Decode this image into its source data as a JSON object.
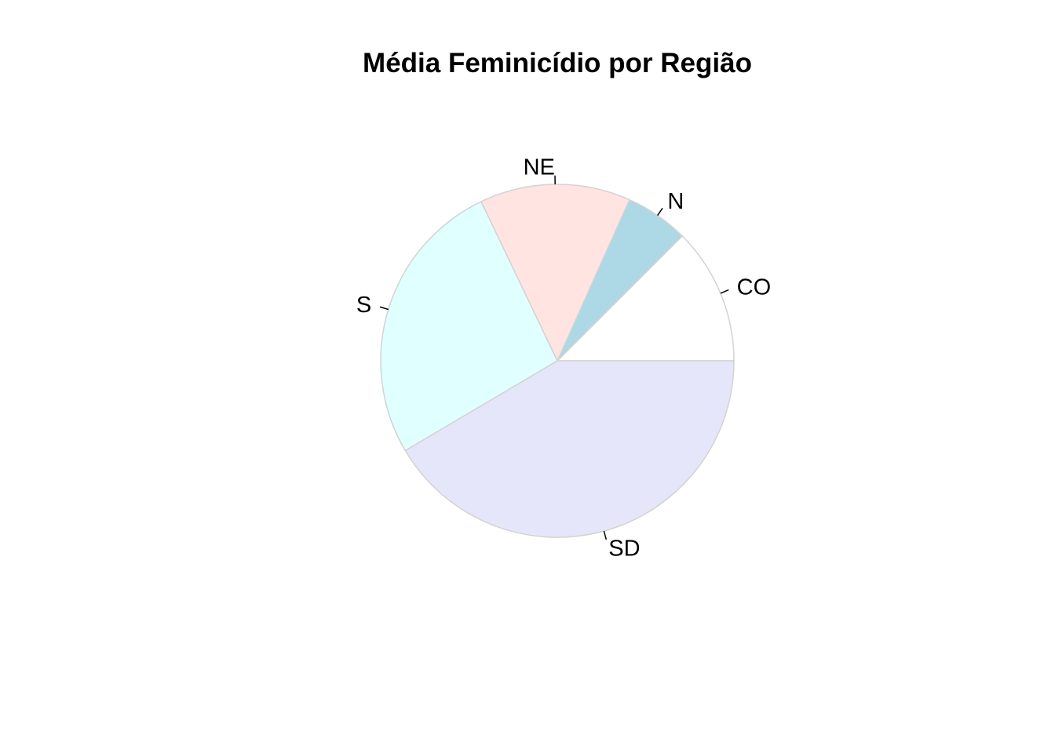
{
  "chart_data": {
    "type": "pie",
    "title": "Média Feminicídio por Região",
    "slices": [
      {
        "label": "CO",
        "value": 12.5,
        "color": "#FFFFFF"
      },
      {
        "label": "N",
        "value": 5.8,
        "color": "#ADD8E6"
      },
      {
        "label": "NE",
        "value": 13.8,
        "color": "#FFE4E1"
      },
      {
        "label": "S",
        "value": 26.4,
        "color": "#E0FFFF"
      },
      {
        "label": "SD",
        "value": 41.5,
        "color": "#E6E6FA"
      }
    ],
    "border_color": "#D3D3D3",
    "start": "counter-clockwise from 3 o'clock"
  }
}
